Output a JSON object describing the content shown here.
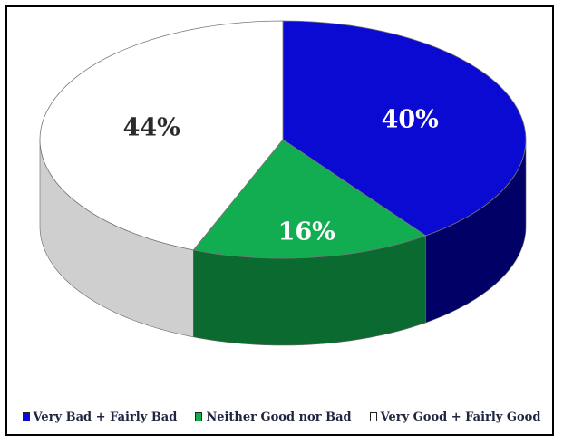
{
  "chart_data": {
    "type": "pie",
    "title": "",
    "style": "3d-pie",
    "legend_position": "bottom",
    "slices": [
      {
        "name": "Very Bad + Fairly Bad",
        "value": 40,
        "label": "40%",
        "color": "#0a0ad2",
        "side_color": "#000066",
        "label_color": "#ffffff"
      },
      {
        "name": "Neither Good nor Bad",
        "value": 16,
        "label": "16%",
        "color": "#12ad50",
        "side_color": "#0b6a30",
        "label_color": "#ffffff"
      },
      {
        "name": "Very Good + Fairly Good",
        "value": 44,
        "label": "44%",
        "color": "#ffffff",
        "side_color": "#cfcfcf",
        "label_color": "#2b2b2b"
      }
    ]
  }
}
